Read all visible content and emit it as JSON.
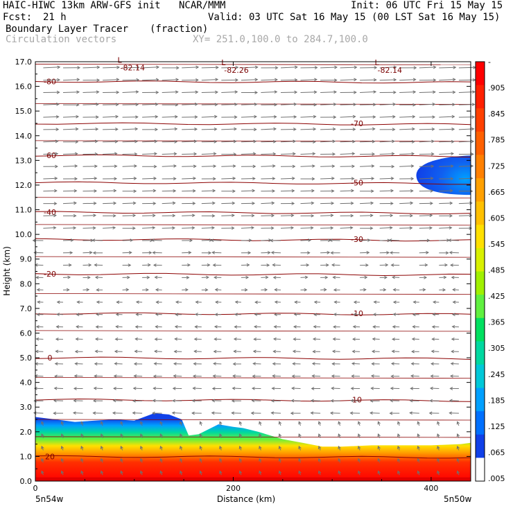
{
  "header": {
    "model": "HAIC-HIWC 13km ARW-GFS init",
    "org": "NCAR/MMM",
    "init": "Init: 06 UTC Fri 15 May 15",
    "fcst_label": "Fcst:",
    "fcst_value": "21 h",
    "valid": "Valid: 03 UTC Sat 16 May 15 (00 LST Sat 16 May 15)",
    "field": "Boundary Layer Tracer",
    "units": "(fraction)",
    "vectors": "Circulation vectors",
    "xy": "XY= 251.0,100.0 to 284.7,100.0"
  },
  "chart_data": {
    "type": "heatmap",
    "ylabel": "Height (km)",
    "xlabel": "Distance (km)",
    "xlim": [
      0,
      440
    ],
    "ylim": [
      0,
      17
    ],
    "x_ticks": [
      0,
      200,
      400
    ],
    "y_ticks": [
      "0.0",
      "1.0",
      "2.0",
      "3.0",
      "4.0",
      "5.0",
      "6.0",
      "7.0",
      "8.0",
      "9.0",
      "10.0",
      "11.0",
      "12.0",
      "13.0",
      "14.0",
      "15.0",
      "16.0",
      "17.0"
    ],
    "x_end_labels": [
      "5n54w",
      "5n50w"
    ],
    "colorbar_labels": [
      "-",
      ".905",
      ".845",
      ".785",
      ".725",
      ".665",
      ".605",
      ".545",
      ".485",
      ".425",
      ".365",
      ".305",
      ".245",
      ".185",
      ".125",
      ".065",
      ".005"
    ],
    "colorbar_colors": [
      "#ff0000",
      "#ff2000",
      "#ff4000",
      "#ff6000",
      "#ff8000",
      "#ffa000",
      "#ffc000",
      "#ffe000",
      "#d8f000",
      "#a0f000",
      "#60f040",
      "#00e060",
      "#00d8a0",
      "#00c8d8",
      "#00a0ff",
      "#0070ff",
      "#1040e8",
      "#ffffff"
    ],
    "tracer_top": [
      [
        0,
        2.6
      ],
      [
        20,
        2.5
      ],
      [
        40,
        2.4
      ],
      [
        60,
        2.45
      ],
      [
        80,
        2.5
      ],
      [
        100,
        2.45
      ],
      [
        120,
        2.75
      ],
      [
        135,
        2.7
      ],
      [
        148,
        2.5
      ],
      [
        155,
        1.85
      ],
      [
        165,
        1.9
      ],
      [
        185,
        2.3
      ],
      [
        200,
        2.2
      ],
      [
        210,
        2.15
      ],
      [
        225,
        2.0
      ],
      [
        250,
        1.7
      ],
      [
        270,
        1.55
      ],
      [
        290,
        1.4
      ],
      [
        310,
        1.4
      ],
      [
        340,
        1.45
      ],
      [
        370,
        1.45
      ],
      [
        400,
        1.45
      ],
      [
        430,
        1.5
      ],
      [
        440,
        1.55
      ]
    ],
    "temperature_contours": [
      {
        "label": "-80",
        "y": 16.2
      },
      {
        "label": "-70",
        "y": 14.5
      },
      {
        "label": "-60",
        "y": 13.2
      },
      {
        "label": "-50",
        "y": 12.1
      },
      {
        "label": "-40",
        "y": 10.9
      },
      {
        "label": "-30",
        "y": 9.8
      },
      {
        "label": "-20",
        "y": 8.4
      },
      {
        "label": "-10",
        "y": 6.8
      },
      {
        "label": "0",
        "y": 5.0
      },
      {
        "label": "10",
        "y": 3.3
      },
      {
        "label": "20",
        "y": 1.0
      }
    ],
    "lows": [
      {
        "x": 90,
        "y": 16.9,
        "label": "-82.14"
      },
      {
        "x": 195,
        "y": 16.8,
        "label": "-82.26"
      },
      {
        "x": 350,
        "y": 16.8,
        "label": "-82.14"
      }
    ],
    "upper_tracer_blob": {
      "x": [
        385,
        440
      ],
      "y": [
        11.6,
        13.2
      ]
    }
  }
}
